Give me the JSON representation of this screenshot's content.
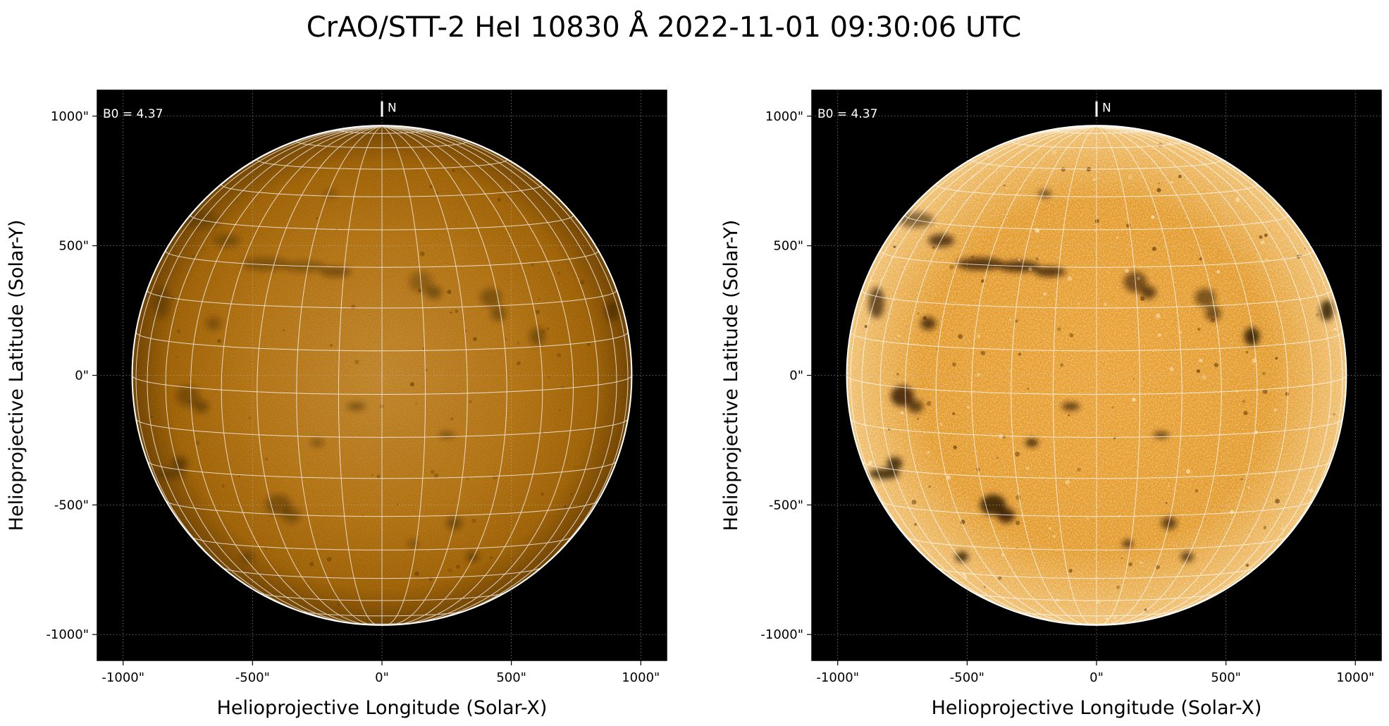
{
  "title": "CrAO/STT-2 HeI 10830 Å 2022-11-01 09:30:06 UTC",
  "colors": {
    "background": "#ffffff",
    "frame": "#000000",
    "disk_light": "#e89a2a",
    "disk_mid": "#c97f10",
    "disk_dark": "#6e4102",
    "grid_line": "#ffffff",
    "limb": "#ffffff",
    "text": "#000000"
  },
  "panels": [
    {
      "id": "left",
      "annotation": "B0 = 4.37",
      "north_label": "N",
      "xlabel": "Helioprojective Longitude (Solar-X)",
      "ylabel": "Helioprojective Latitude (Solar-Y)",
      "x_ticks": [
        "-1000\"",
        "-500\"",
        "0\"",
        "500\"",
        "1000\""
      ],
      "y_ticks": [
        "1000\"",
        "500\"",
        "0\"",
        "-500\"",
        "-1000\""
      ],
      "style": "smooth"
    },
    {
      "id": "right",
      "annotation": "B0 = 4.37",
      "north_label": "N",
      "xlabel": "Helioprojective Longitude (Solar-X)",
      "ylabel": "Helioprojective Latitude (Solar-Y)",
      "x_ticks": [
        "-1000\"",
        "-500\"",
        "0\"",
        "500\"",
        "1000\""
      ],
      "y_ticks": [
        "1000\"",
        "500\"",
        "0\"",
        "-500\"",
        "-1000\""
      ],
      "style": "enhanced"
    }
  ],
  "axis_values": {
    "x_ticks": [
      -1000,
      -500,
      0,
      500,
      1000
    ],
    "y_ticks": [
      1000,
      500,
      0,
      -500,
      -1000
    ],
    "xlim": [
      -1100,
      1100
    ],
    "ylim": [
      -1100,
      1100
    ],
    "solar_radius_arcsec": 965,
    "b0_deg": 4.37,
    "grid_lon_step_deg": 10,
    "grid_lat_step_deg": 10
  }
}
